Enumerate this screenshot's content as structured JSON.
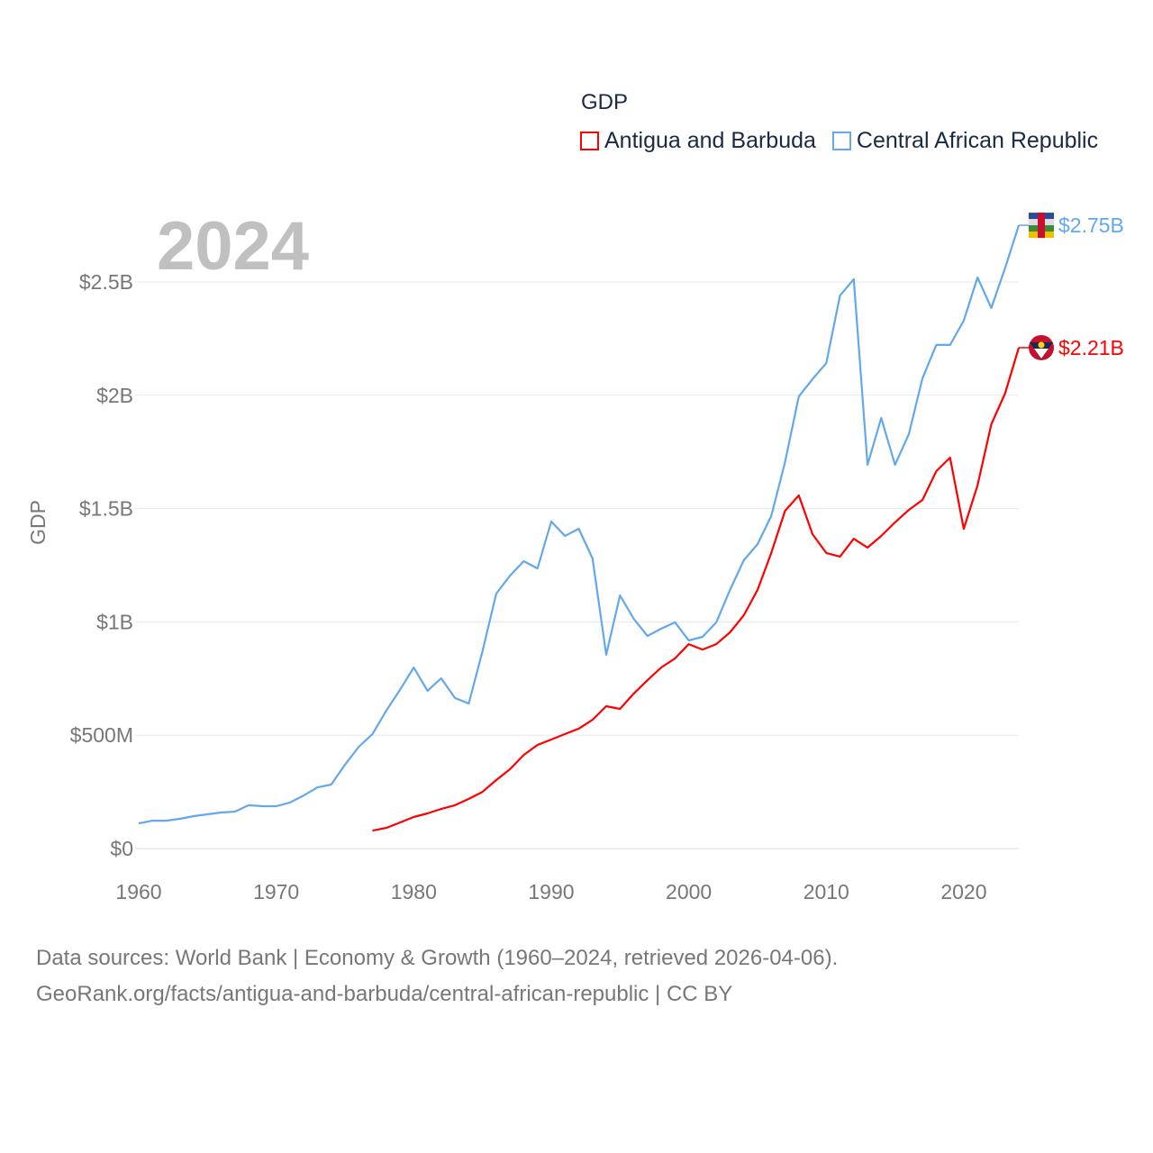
{
  "legend": {
    "title": "GDP"
  },
  "year_label": "2024",
  "footer": {
    "line1": "Data sources: World Bank | Economy & Growth (1960–2024, retrieved 2026-04-06).",
    "line2": "GeoRank.org/facts/antigua-and-barbuda/central-african-republic | CC BY"
  },
  "chart_data": {
    "type": "line",
    "title": "GDP",
    "xlabel": "",
    "ylabel": "GDP",
    "xlim": [
      1960,
      2024
    ],
    "ylim": [
      0,
      2.75
    ],
    "x_ticks": [
      1960,
      1970,
      1980,
      1990,
      2000,
      2010,
      2020
    ],
    "y_ticks": [
      0,
      0.5,
      1,
      1.5,
      2,
      2.5
    ],
    "y_tick_labels": [
      "$0",
      "$500M",
      "$1B",
      "$1.5B",
      "$2B",
      "$2.5B"
    ],
    "units": "USD billions",
    "grid": "horizontal",
    "legend_position": "top-right",
    "series": [
      {
        "name": "Antigua and Barbuda",
        "color": "#ff0000",
        "end_label": "$2.21B",
        "start_year": 1977,
        "values": [
          0.079,
          0.091,
          0.115,
          0.139,
          0.155,
          0.175,
          0.191,
          0.219,
          0.25,
          0.302,
          0.35,
          0.413,
          0.457,
          0.481,
          0.505,
          0.529,
          0.568,
          0.628,
          0.616,
          0.684,
          0.743,
          0.799,
          0.839,
          0.902,
          0.878,
          0.902,
          0.954,
          1.029,
          1.141,
          1.304,
          1.49,
          1.558,
          1.387,
          1.304,
          1.288,
          1.367,
          1.328,
          1.379,
          1.439,
          1.494,
          1.538,
          1.665,
          1.725,
          1.411,
          1.602,
          1.872,
          2.007,
          2.21
        ]
      },
      {
        "name": "Central African Republic",
        "color": "#64a8ec",
        "end_label": "$2.75B",
        "start_year": 1960,
        "values": [
          0.111,
          0.123,
          0.123,
          0.131,
          0.143,
          0.151,
          0.159,
          0.163,
          0.191,
          0.187,
          0.187,
          0.203,
          0.234,
          0.27,
          0.282,
          0.37,
          0.449,
          0.505,
          0.608,
          0.7,
          0.799,
          0.696,
          0.751,
          0.664,
          0.64,
          0.87,
          1.125,
          1.204,
          1.268,
          1.236,
          1.443,
          1.379,
          1.411,
          1.28,
          0.855,
          1.117,
          1.013,
          0.938,
          0.97,
          0.998,
          0.918,
          0.934,
          0.998,
          1.141,
          1.272,
          1.343,
          1.467,
          1.705,
          1.995,
          2.071,
          2.142,
          2.44,
          2.512,
          1.693,
          1.9,
          1.693,
          1.828,
          2.075,
          2.222,
          2.222,
          2.329,
          2.52,
          2.385,
          2.56,
          2.75
        ]
      }
    ]
  }
}
